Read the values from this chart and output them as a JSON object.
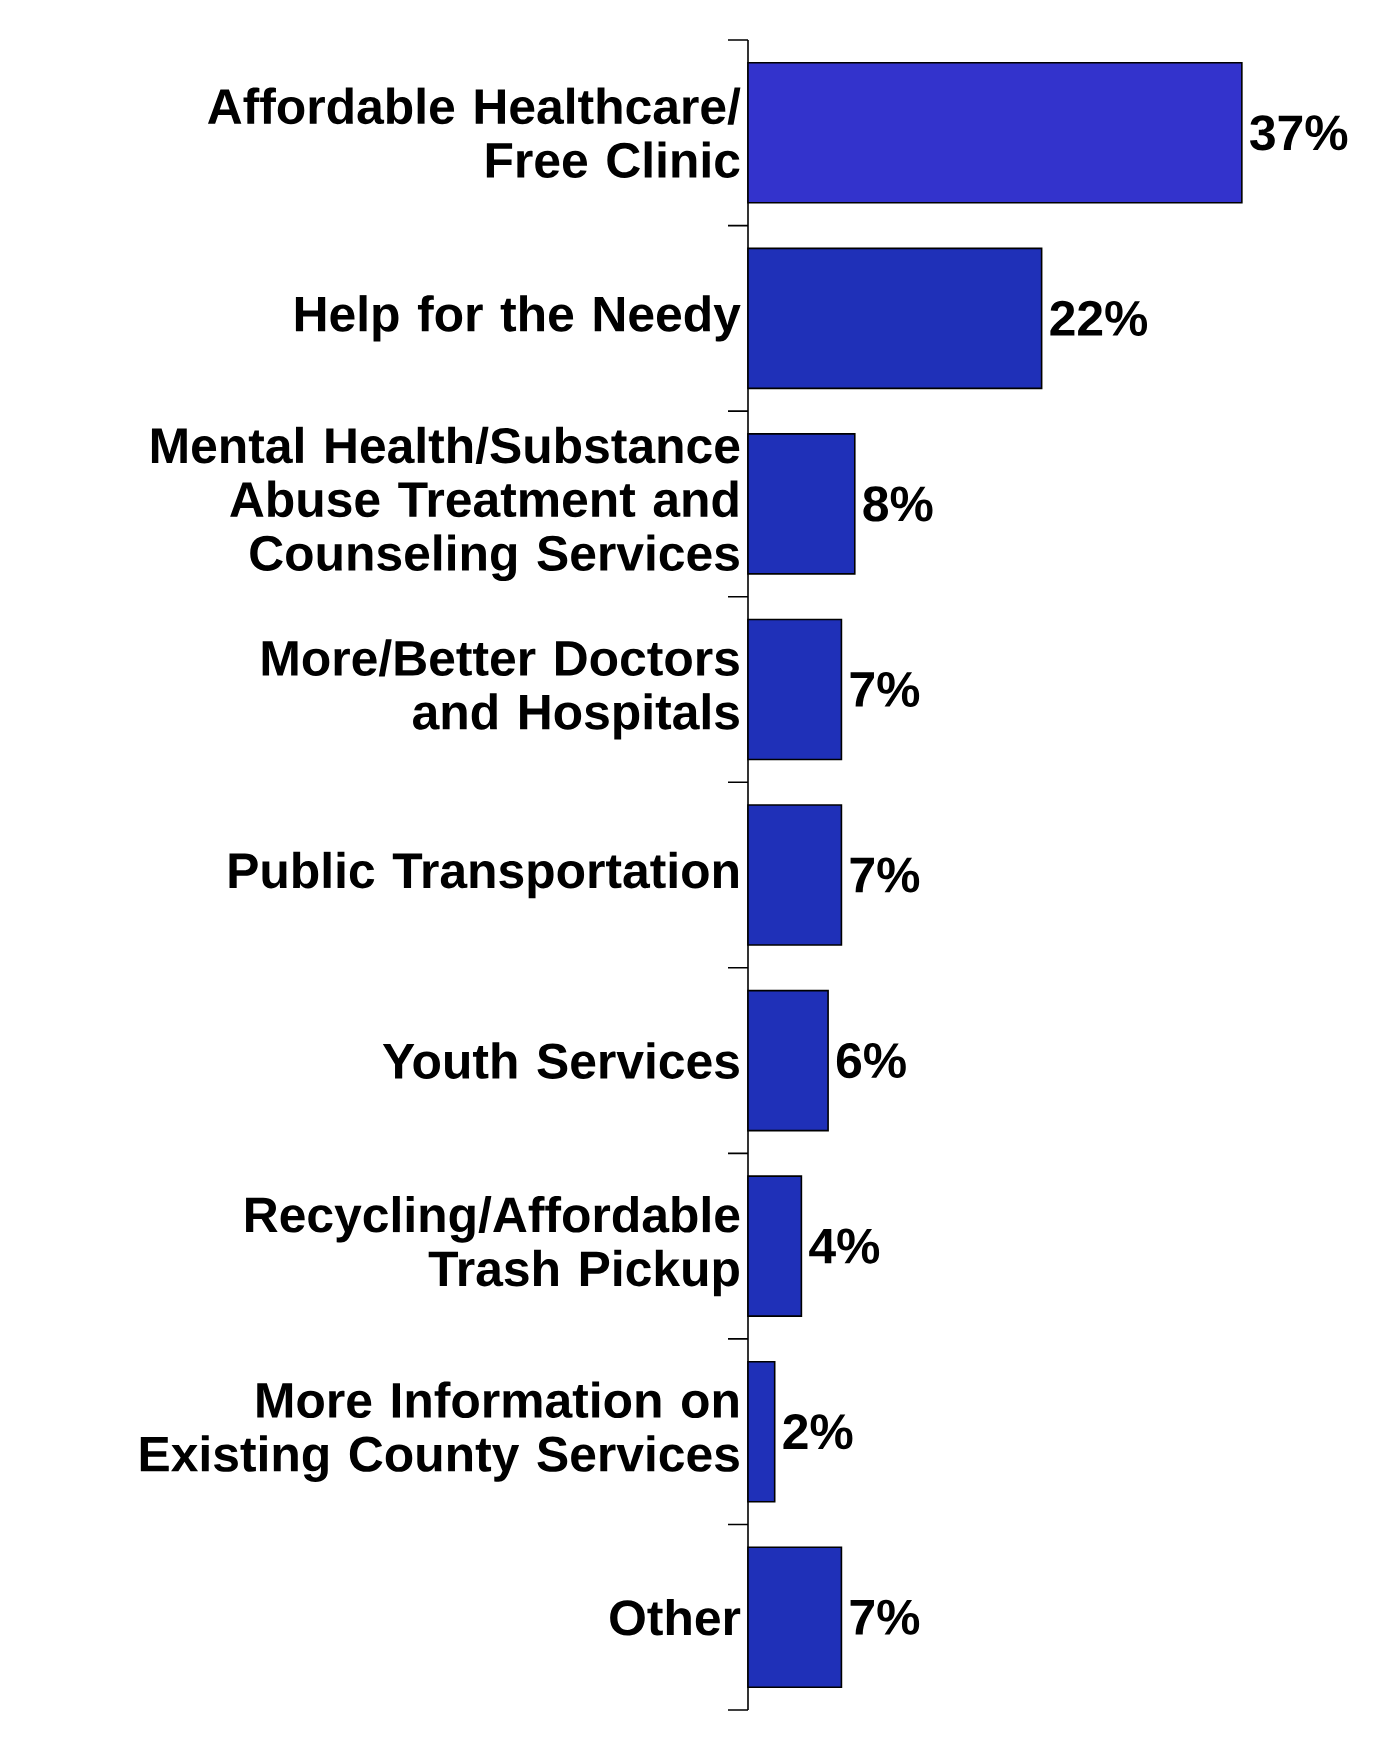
{
  "chart_data": {
    "type": "bar",
    "orientation": "horizontal",
    "categories": [
      "Affordable Healthcare/ Free Clinic",
      "Help for the Needy",
      "Mental Health/Substance Abuse Treatment and Counseling Services",
      "More/Better Doctors and Hospitals",
      "Public Transportation",
      "Youth Services",
      "Recycling/Affordable Trash Pickup",
      "More Information on Existing County Services",
      "Other"
    ],
    "values": [
      37,
      22,
      8,
      7,
      7,
      6,
      4,
      2,
      7
    ],
    "colors": [
      "#3333cc",
      "#1f30b8",
      "#1f30b8",
      "#1f30b8",
      "#1f30b8",
      "#1f30b8",
      "#1f30b8",
      "#1f30b8",
      "#1f30b8"
    ],
    "value_labels": [
      "37%",
      "22%",
      "8%",
      "7%",
      "7%",
      "6%",
      "4%",
      "2%",
      "7%"
    ]
  }
}
